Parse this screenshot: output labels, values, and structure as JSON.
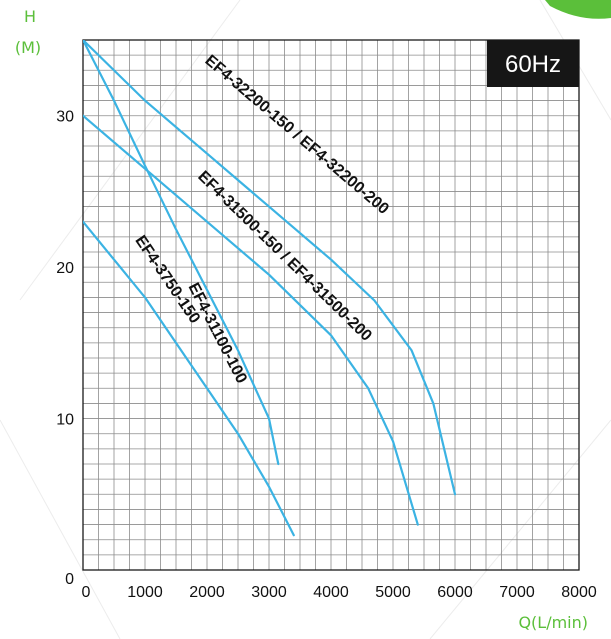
{
  "chart_data": {
    "type": "line",
    "title": "",
    "xlabel": "Q(L/min)",
    "ylabel_line1": "H",
    "ylabel_line2": "(M)",
    "badge": "60Hz",
    "xlim": [
      0,
      8000
    ],
    "ylim": [
      0,
      35
    ],
    "x_ticks": [
      0,
      1000,
      2000,
      3000,
      4000,
      5000,
      6000,
      7000,
      8000
    ],
    "y_ticks": [
      0,
      10,
      20,
      30
    ],
    "grid": true,
    "legend": "none",
    "line_color": "#3bb3e3",
    "accent_color": "#5bbf3a",
    "badge_bg": "#161616",
    "series": [
      {
        "name": "EF4-32200-150 / EF4-32200-200",
        "points": [
          [
            0,
            35
          ],
          [
            1000,
            31
          ],
          [
            2000,
            27.5
          ],
          [
            3000,
            24
          ],
          [
            4000,
            20.5
          ],
          [
            4700,
            17.8
          ],
          [
            5300,
            14.5
          ],
          [
            5650,
            11
          ],
          [
            6000,
            5
          ]
        ]
      },
      {
        "name": "EF4-31500-150 / EF4-31500-200",
        "points": [
          [
            0,
            30
          ],
          [
            1000,
            26.5
          ],
          [
            2000,
            23
          ],
          [
            3000,
            19.5
          ],
          [
            4000,
            15.5
          ],
          [
            4600,
            12
          ],
          [
            5000,
            8.5
          ],
          [
            5400,
            3
          ]
        ]
      },
      {
        "name": "EF4-31100-100",
        "points": [
          [
            0,
            35
          ],
          [
            500,
            31
          ],
          [
            1000,
            26.7
          ],
          [
            1500,
            22.5
          ],
          [
            2000,
            18.5
          ],
          [
            2500,
            14.5
          ],
          [
            3000,
            10
          ],
          [
            3150,
            7
          ]
        ]
      },
      {
        "name": "EF4-3750-150",
        "points": [
          [
            0,
            23
          ],
          [
            500,
            20.5
          ],
          [
            1000,
            18
          ],
          [
            1500,
            15
          ],
          [
            2000,
            12
          ],
          [
            2500,
            9
          ],
          [
            3000,
            5.5
          ],
          [
            3400,
            2.3
          ]
        ]
      }
    ],
    "label_positions": [
      [
        3400,
        28.5
      ],
      [
        3200,
        20.5
      ],
      [
        2100,
        15.5
      ],
      [
        1300,
        19
      ]
    ]
  }
}
